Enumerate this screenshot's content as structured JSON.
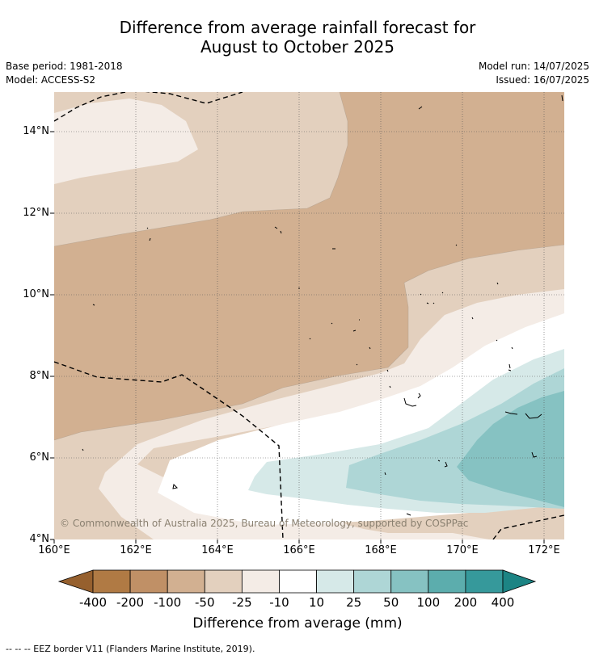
{
  "title_line1": "Difference from average rainfall forecast for",
  "title_line2": "August to October 2025",
  "base_period": "Base period: 1981-2018",
  "model": "Model: ACCESS-S2",
  "model_run": "Model run: 14/07/2025",
  "issued": "Issued: 16/07/2025",
  "lat_labels": [
    "14°N",
    "12°N",
    "10°N",
    "8°N",
    "6°N",
    "4°N"
  ],
  "lon_labels": [
    "160°E",
    "162°E",
    "164°E",
    "166°E",
    "168°E",
    "170°E",
    "172°E"
  ],
  "copyright": "© Commonwealth of Australia 2025, Bureau of Meteorology, supported by COSPPac",
  "colorbar": {
    "labels": [
      "-400",
      "-200",
      "-100",
      "-50",
      "-25",
      "-10",
      "10",
      "25",
      "50",
      "100",
      "200",
      "400"
    ],
    "colors": [
      "#96602e",
      "#b07a44",
      "#c09066",
      "#d2b091",
      "#e3d0be",
      "#f4ece6",
      "#ffffff",
      "#d6e9e8",
      "#aed6d6",
      "#86c2c2",
      "#5cadad",
      "#36999b",
      "#1c8484"
    ],
    "title": "Difference from average (mm)"
  },
  "footnote": "--  --  -- EEZ border V11 (Flanders Marine Institute, 2019).",
  "map_colors": {
    "band_m50": "#d2b091",
    "band_m25": "#e3d0be",
    "band_m10": "#f4ece6",
    "band_p10": "#ffffff",
    "band_p25": "#d6e9e8",
    "band_p50": "#aed6d6",
    "band_p100": "#86c2c2"
  }
}
